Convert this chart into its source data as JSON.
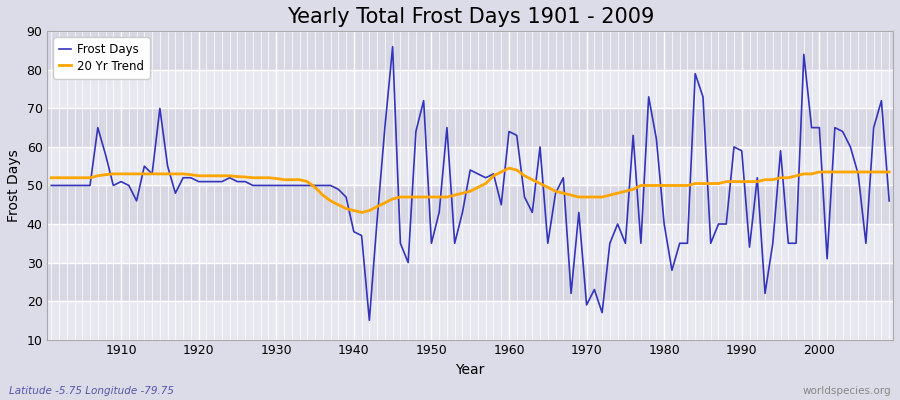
{
  "title": "Yearly Total Frost Days 1901 - 2009",
  "xlabel": "Year",
  "ylabel": "Frost Days",
  "subtitle": "Latitude -5.75 Longitude -79.75",
  "watermark": "worldspecies.org",
  "years": [
    1901,
    1902,
    1903,
    1904,
    1905,
    1906,
    1907,
    1908,
    1909,
    1910,
    1911,
    1912,
    1913,
    1914,
    1915,
    1916,
    1917,
    1918,
    1919,
    1920,
    1921,
    1922,
    1923,
    1924,
    1925,
    1926,
    1927,
    1928,
    1929,
    1930,
    1931,
    1932,
    1933,
    1934,
    1935,
    1936,
    1937,
    1938,
    1939,
    1940,
    1941,
    1942,
    1943,
    1944,
    1945,
    1946,
    1947,
    1948,
    1949,
    1950,
    1951,
    1952,
    1953,
    1954,
    1955,
    1956,
    1957,
    1958,
    1959,
    1960,
    1961,
    1962,
    1963,
    1964,
    1965,
    1966,
    1967,
    1968,
    1969,
    1970,
    1971,
    1972,
    1973,
    1974,
    1975,
    1976,
    1977,
    1978,
    1979,
    1980,
    1981,
    1982,
    1983,
    1984,
    1985,
    1986,
    1987,
    1988,
    1989,
    1990,
    1991,
    1992,
    1993,
    1994,
    1995,
    1996,
    1997,
    1998,
    1999,
    2000,
    2001,
    2002,
    2003,
    2004,
    2005,
    2006,
    2007,
    2008,
    2009
  ],
  "frost_days": [
    50,
    50,
    50,
    50,
    50,
    50,
    65,
    58,
    50,
    51,
    50,
    46,
    55,
    53,
    70,
    55,
    48,
    52,
    52,
    51,
    51,
    51,
    51,
    52,
    51,
    51,
    50,
    50,
    50,
    50,
    50,
    50,
    50,
    50,
    50,
    50,
    50,
    49,
    47,
    38,
    37,
    15,
    41,
    65,
    86,
    35,
    30,
    64,
    72,
    35,
    43,
    65,
    35,
    43,
    54,
    53,
    52,
    53,
    45,
    64,
    63,
    47,
    43,
    60,
    35,
    48,
    52,
    22,
    43,
    19,
    23,
    17,
    35,
    40,
    35,
    63,
    35,
    73,
    62,
    40,
    28,
    35,
    35,
    79,
    73,
    35,
    40,
    40,
    60,
    59,
    34,
    52,
    22,
    35,
    59,
    35,
    35,
    84,
    65,
    65,
    31,
    65,
    64,
    60,
    53,
    35,
    65,
    72,
    46
  ],
  "trend_values": [
    52.0,
    52.0,
    52.0,
    52.0,
    52.0,
    52.0,
    52.5,
    52.8,
    53.0,
    53.0,
    53.0,
    53.0,
    53.0,
    53.0,
    53.0,
    53.0,
    53.0,
    53.0,
    52.8,
    52.5,
    52.5,
    52.5,
    52.5,
    52.5,
    52.3,
    52.2,
    52.0,
    52.0,
    52.0,
    51.8,
    51.5,
    51.5,
    51.5,
    51.0,
    49.5,
    47.5,
    46.0,
    45.0,
    44.0,
    43.5,
    43.0,
    43.5,
    44.5,
    45.5,
    46.5,
    47.0,
    47.0,
    47.0,
    47.0,
    47.0,
    47.0,
    47.0,
    47.5,
    48.0,
    48.5,
    49.5,
    50.5,
    52.5,
    53.5,
    54.5,
    54.0,
    52.5,
    51.5,
    50.5,
    49.5,
    48.5,
    48.0,
    47.5,
    47.0,
    47.0,
    47.0,
    47.0,
    47.5,
    48.0,
    48.5,
    49.0,
    50.0,
    50.0,
    50.0,
    50.0,
    50.0,
    50.0,
    50.0,
    50.5,
    50.5,
    50.5,
    50.5,
    51.0,
    51.0,
    51.0,
    51.0,
    51.0,
    51.5,
    51.5,
    52.0,
    52.0,
    52.5,
    53.0,
    53.0,
    53.5,
    53.5,
    53.5,
    53.5,
    53.5,
    53.5,
    53.5,
    53.5,
    53.5,
    53.5
  ],
  "line_color": "#3333bb",
  "trend_color": "#ffa500",
  "bg_color": "#dcdce8",
  "plot_bg_light": "#e8e8f0",
  "plot_bg_dark": "#d8d8e4",
  "grid_color": "#ffffff",
  "ylim": [
    10,
    90
  ],
  "yticks": [
    10,
    20,
    30,
    40,
    50,
    60,
    70,
    80,
    90
  ],
  "xlim_start": 1901,
  "xlim_end": 2009,
  "xticks": [
    1910,
    1920,
    1930,
    1940,
    1950,
    1960,
    1970,
    1980,
    1990,
    2000
  ],
  "title_fontsize": 15,
  "label_fontsize": 10,
  "tick_fontsize": 9
}
